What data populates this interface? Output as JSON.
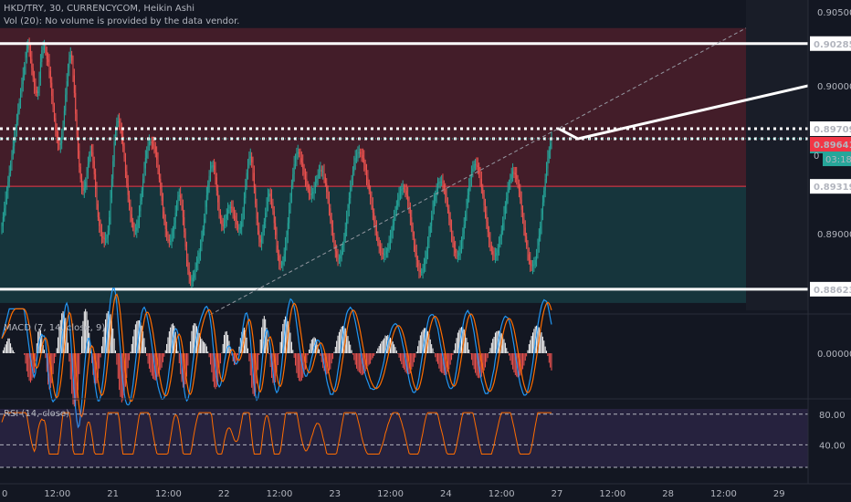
{
  "header": {
    "title": "HKD/TRY, 30, CURRENCYCOM, Heikin Ashi",
    "volume_note": "Vol (20): No volume is provided by the data vendor."
  },
  "chart_data": [
    {
      "type": "candlestick",
      "title": "HKD/TRY, 30, CURRENCYCOM, Heikin Ashi",
      "ylim": [
        0.8848,
        0.9058
      ],
      "y_ticks": [
        "0.90500",
        "0.90000",
        "0.89000"
      ],
      "price_labels": [
        {
          "text": "0.90285",
          "value": 0.90285,
          "style": "white"
        },
        {
          "text": "0.89709",
          "value": 0.89709,
          "style": "white"
        },
        {
          "text": "0.89641",
          "value": 0.89641,
          "style": "teal"
        },
        {
          "text": "0.89641",
          "value": 0.89641,
          "style": "red"
        },
        {
          "text": "0.89319",
          "value": 0.89319,
          "style": "white"
        },
        {
          "text": "0.88623",
          "value": 0.88623,
          "style": "white"
        }
      ],
      "countdown": "03:18",
      "countdown_prefix": "0",
      "x_ticks": [
        "0",
        "12:00",
        "21",
        "12:00",
        "22",
        "12:00",
        "23",
        "12:00",
        "24",
        "12:00",
        "27",
        "12:00",
        "28",
        "12:00",
        "29"
      ],
      "horizontal_levels": [
        {
          "value": 0.90285,
          "style": "solid"
        },
        {
          "value": 0.88623,
          "style": "solid"
        },
        {
          "value": 0.89709,
          "style": "dotted"
        },
        {
          "value": 0.89641,
          "style": "dotted"
        }
      ],
      "zones": [
        {
          "from": 0.89319,
          "to": 0.9039,
          "color": "#f23645"
        },
        {
          "from": 0.8853,
          "to": 0.89319,
          "color": "#26a69a"
        }
      ],
      "close": 0.89641,
      "close_series": [
        0.8905,
        0.8911,
        0.8917,
        0.8923,
        0.8929,
        0.8935,
        0.8941,
        0.8947,
        0.8953,
        0.8959,
        0.8965,
        0.8971,
        0.8977,
        0.8983,
        0.8989,
        0.8995,
        0.9001,
        0.9007,
        0.9013,
        0.9019,
        0.9025,
        0.9029,
        0.9024,
        0.9018,
        0.9012,
        0.9006,
        0.9,
        0.8997,
        0.8995,
        0.8996,
        0.9005,
        0.9016,
        0.9024,
        0.9026,
        0.9026,
        0.9023,
        0.9018,
        0.9016,
        0.901,
        0.9002,
        0.8993,
        0.8986,
        0.8978,
        0.897,
        0.8964,
        0.8961,
        0.896,
        0.8961,
        0.8966,
        0.8974,
        0.8983,
        0.8994,
        0.9003,
        0.9012,
        0.9019,
        0.9021,
        0.9017,
        0.9007,
        0.8995,
        0.8981,
        0.8967,
        0.8956,
        0.8945,
        0.8937,
        0.8931,
        0.8929,
        0.8931,
        0.8935,
        0.8941,
        0.8947,
        0.8953,
        0.8956,
        0.8955,
        0.8949,
        0.894,
        0.893,
        0.892,
        0.8911,
        0.8905,
        0.8901,
        0.8898,
        0.8897,
        0.8896,
        0.8896,
        0.8897,
        0.8902,
        0.8911,
        0.8924,
        0.8937,
        0.8949,
        0.8962,
        0.897,
        0.8975,
        0.8976,
        0.8975,
        0.8971,
        0.8966,
        0.8959,
        0.8951,
        0.8942,
        0.8934,
        0.8926,
        0.8919,
        0.8913,
        0.8908,
        0.8904,
        0.8902,
        0.8902,
        0.8904,
        0.8909,
        0.8915,
        0.8922,
        0.8929,
        0.8937,
        0.8944,
        0.8951,
        0.8956,
        0.896,
        0.8962,
        0.8962,
        0.8961,
        0.896,
        0.8959,
        0.8955,
        0.895,
        0.8944,
        0.8937,
        0.893,
        0.8922,
        0.8915,
        0.8909,
        0.8903,
        0.8899,
        0.8896,
        0.8895,
        0.8895,
        0.8898,
        0.8902,
        0.8907,
        0.8914,
        0.892,
        0.8925,
        0.8926,
        0.8924,
        0.8919,
        0.8911,
        0.8901,
        0.8891,
        0.8882,
        0.8875,
        0.8871,
        0.8868,
        0.8868,
        0.887,
        0.8873,
        0.8877,
        0.888,
        0.8883,
        0.8887,
        0.8892,
        0.8897,
        0.8903,
        0.891,
        0.8918,
        0.8926,
        0.8933,
        0.8939,
        0.8944,
        0.8946,
        0.8946,
        0.8943,
        0.8938,
        0.8929,
        0.8921,
        0.8914,
        0.8909,
        0.8906,
        0.8905,
        0.8907,
        0.891,
        0.8913,
        0.8916,
        0.8917,
        0.8918,
        0.8917,
        0.8915,
        0.8912,
        0.8909,
        0.8906,
        0.8903,
        0.8903,
        0.8904,
        0.8908,
        0.8915,
        0.8924,
        0.8932,
        0.8941,
        0.8947,
        0.8951,
        0.8952,
        0.8948,
        0.8941,
        0.8931,
        0.892,
        0.891,
        0.8902,
        0.8896,
        0.8894,
        0.8897,
        0.8901,
        0.8908,
        0.8914,
        0.892,
        0.8925,
        0.8927,
        0.8925,
        0.8921,
        0.8915,
        0.8907,
        0.8899,
        0.8892,
        0.8885,
        0.8881,
        0.8879,
        0.8879,
        0.8881,
        0.8886,
        0.8892,
        0.8899,
        0.8907,
        0.8916,
        0.8925,
        0.8933,
        0.894,
        0.8947,
        0.8951,
        0.8954,
        0.8955,
        0.8954,
        0.8951,
        0.8948,
        0.8944,
        0.894,
        0.8937,
        0.8933,
        0.893,
        0.8927,
        0.8926,
        0.8927,
        0.8928,
        0.8931,
        0.8934,
        0.8937,
        0.894,
        0.8942,
        0.8943,
        0.8942,
        0.8942,
        0.8938,
        0.8934,
        0.8928,
        0.8923,
        0.8917,
        0.891,
        0.8904,
        0.8898,
        0.8892,
        0.8888,
        0.8884,
        0.8883,
        0.8883,
        0.8885,
        0.8888,
        0.8892,
        0.8897,
        0.8903,
        0.891,
        0.8917,
        0.8924,
        0.8931,
        0.8937,
        0.8942,
        0.8948,
        0.8951,
        0.8954,
        0.8955,
        0.8955,
        0.8954,
        0.8953,
        0.8951,
        0.8947,
        0.8943,
        0.8938,
        0.8934,
        0.8929,
        0.8924,
        0.8919,
        0.8914,
        0.8908,
        0.8904,
        0.8899,
        0.8894,
        0.8891,
        0.8888,
        0.8887,
        0.8886,
        0.8886,
        0.8886,
        0.8888,
        0.889,
        0.8894,
        0.8897,
        0.8902,
        0.8906,
        0.8911,
        0.8916,
        0.8919,
        0.8923,
        0.8926,
        0.8929,
        0.893,
        0.8931,
        0.893,
        0.8929,
        0.8926,
        0.8922,
        0.8917,
        0.8911,
        0.8905,
        0.8898,
        0.8892,
        0.8887,
        0.8882,
        0.8878,
        0.8875,
        0.8874,
        0.8874,
        0.8876,
        0.8879,
        0.8883,
        0.8888,
        0.8894,
        0.89,
        0.8905,
        0.8912,
        0.8918,
        0.8922,
        0.8926,
        0.893,
        0.8933,
        0.8935,
        0.8935,
        0.8935,
        0.8933,
        0.893,
        0.8926,
        0.8922,
        0.8916,
        0.891,
        0.8904,
        0.8899,
        0.8894,
        0.889,
        0.8887,
        0.8885,
        0.8885,
        0.8887,
        0.889,
        0.8895,
        0.89,
        0.8906,
        0.8913,
        0.892,
        0.8926,
        0.8932,
        0.8937,
        0.8942,
        0.8944,
        0.8947,
        0.8947,
        0.8946,
        0.8945,
        0.8941,
        0.8937,
        0.8931,
        0.8926,
        0.8919,
        0.8913,
        0.8908,
        0.8901,
        0.8896,
        0.8892,
        0.8888,
        0.8886,
        0.8885,
        0.8885,
        0.8887,
        0.8889,
        0.8893,
        0.8897,
        0.8902,
        0.8907,
        0.8913,
        0.8919,
        0.8924,
        0.893,
        0.8934,
        0.8937,
        0.894,
        0.8942,
        0.8941,
        0.894,
        0.8937,
        0.8933,
        0.8929,
        0.8923,
        0.8916,
        0.891,
        0.8904,
        0.8898,
        0.8892,
        0.8886,
        0.8882,
        0.8879,
        0.8878,
        0.8878,
        0.8879,
        0.8882,
        0.8886,
        0.8892,
        0.8898,
        0.8905,
        0.8913,
        0.8921,
        0.8929,
        0.8937,
        0.8944,
        0.8951,
        0.8956,
        0.8961,
        0.8964
      ],
      "projection": {
        "from": 0.89709,
        "low": 0.89641,
        "to": 0.9
      },
      "trend_line": {
        "from": 0.8845,
        "to": 0.9039
      }
    },
    {
      "type": "line",
      "title": "MACD (7, 14, close, 9)",
      "y_ticks": [
        "0.00000"
      ],
      "series": [
        {
          "color": "#2196f3"
        },
        {
          "color": "#ff6d00"
        }
      ]
    },
    {
      "type": "line",
      "title": "RSI (14, close)",
      "ylim": [
        0,
        100
      ],
      "y_ticks": [
        "80.00",
        "40.00"
      ],
      "series": [
        {
          "color": "#ff6d00"
        }
      ]
    }
  ]
}
